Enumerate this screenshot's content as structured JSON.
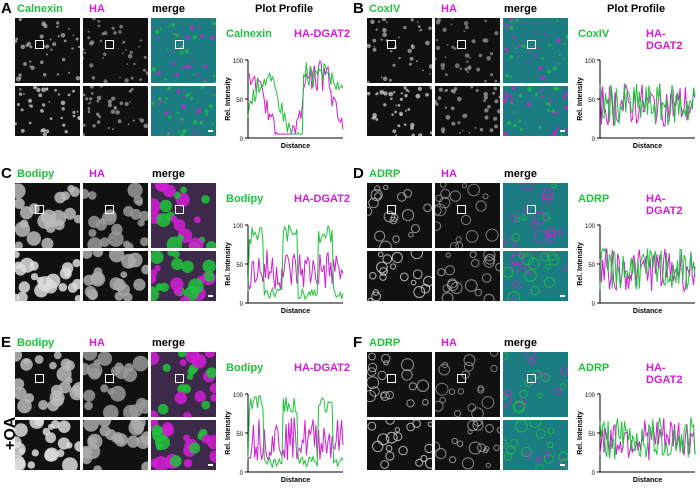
{
  "panels": [
    {
      "letter": "A",
      "stain": "Calnexin",
      "ha": "HA",
      "merge": "merge",
      "pp_title": "Plot Profile",
      "pp_green": "Calnexin",
      "pp_mag": "HA-DGAT2",
      "pattern": "er",
      "merge_bg": "#1b7c82",
      "chart": {
        "ticks": [
          "100",
          "50",
          "0"
        ],
        "ylabel": "Rel. Intensity",
        "xlabel": "Distance"
      }
    },
    {
      "letter": "B",
      "stain": "CoxIV",
      "ha": "HA",
      "merge": "merge",
      "pp_title": "Plot Profile",
      "pp_green": "CoxIV",
      "pp_mag": "HA-DGAT2",
      "pattern": "dots",
      "merge_bg": "#1b7c82",
      "chart": {
        "ticks": [
          "100",
          "50",
          "0"
        ],
        "ylabel": "Rel. Intensity",
        "xlabel": "Distance"
      }
    },
    {
      "letter": "C",
      "stain": "Bodipy",
      "ha": "HA",
      "merge": "merge",
      "pp_title": "",
      "pp_green": "Bodipy",
      "pp_mag": "HA-DGAT2",
      "pattern": "drops",
      "merge_bg": "#3d2a4a",
      "chart": {
        "ticks": [
          "100",
          "50",
          "0"
        ],
        "ylabel": "Rel. Intensity",
        "xlabel": "Distance"
      }
    },
    {
      "letter": "D",
      "stain": "ADRP",
      "ha": "HA",
      "merge": "merge",
      "pp_title": "",
      "pp_green": "ADRP",
      "pp_mag": "HA-DGAT2",
      "pattern": "rings",
      "merge_bg": "#1b7c82",
      "chart": {
        "ticks": [
          "100",
          "50",
          "0"
        ],
        "ylabel": "Rel. Intensity",
        "xlabel": "Distance"
      }
    },
    {
      "letter": "E",
      "stain": "Bodipy",
      "ha": "HA",
      "merge": "merge",
      "pp_title": "",
      "pp_green": "Bodipy",
      "pp_mag": "HA-DGAT2",
      "pattern": "drops",
      "merge_bg": "#3d2a4a",
      "chart": {
        "ticks": [
          "100",
          "50",
          "0"
        ],
        "ylabel": "Rel. Intensity",
        "xlabel": "Distance"
      }
    },
    {
      "letter": "F",
      "stain": "ADRP",
      "ha": "HA",
      "merge": "merge",
      "pp_title": "",
      "pp_green": "ADRP",
      "pp_mag": "HA-DGAT2",
      "pattern": "rings",
      "merge_bg": "#1b7c82",
      "chart": {
        "ticks": [
          "100",
          "50",
          "0"
        ],
        "ylabel": "Rel. Intensity",
        "xlabel": "Distance"
      }
    }
  ],
  "side_label": "+OA",
  "colors": {
    "green": "#1fc23a",
    "magenta": "#d31cd3",
    "cyan": "#27c7d6"
  }
}
